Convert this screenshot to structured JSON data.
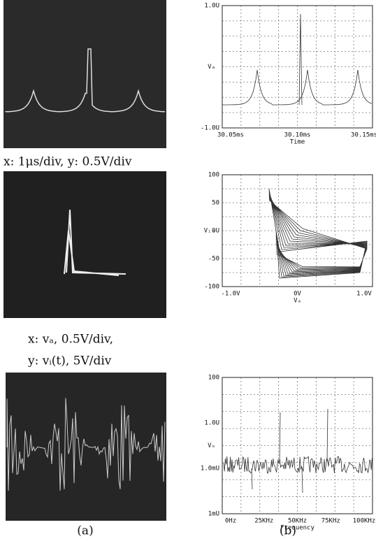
{
  "panel_a": {
    "captions": [
      "x: 1μs/div, y: 0.5V/div",
      "x:  vₐ, 0.5V/div,",
      "y:  vᵢ(t), 5V/div"
    ],
    "label": "(a)"
  },
  "panel_b": {
    "label": "(b)",
    "plots": [
      {
        "ylabel": "Vₐ",
        "xlabel": "Time",
        "yticks": [
          "1.0U",
          "-1.0U"
        ],
        "xticks": [
          "30.05ms",
          "30.10ms",
          "30.15ms"
        ]
      },
      {
        "ylabel": "Vᵢₙ",
        "xlabel": "Vₐ",
        "yticks": [
          "100",
          "50",
          "0U",
          "-50",
          "-100"
        ],
        "xticks": [
          "-1.0V",
          "0V",
          "1.0V"
        ]
      },
      {
        "ylabel": "Vₒ",
        "xlabel": "Frequency",
        "yticks": [
          "100",
          "1.0U",
          "1.0mU",
          "1mU"
        ],
        "xticks": [
          "0Hz",
          "25KHz",
          "50KHz",
          "75KHz",
          "100KHz"
        ]
      }
    ]
  }
}
